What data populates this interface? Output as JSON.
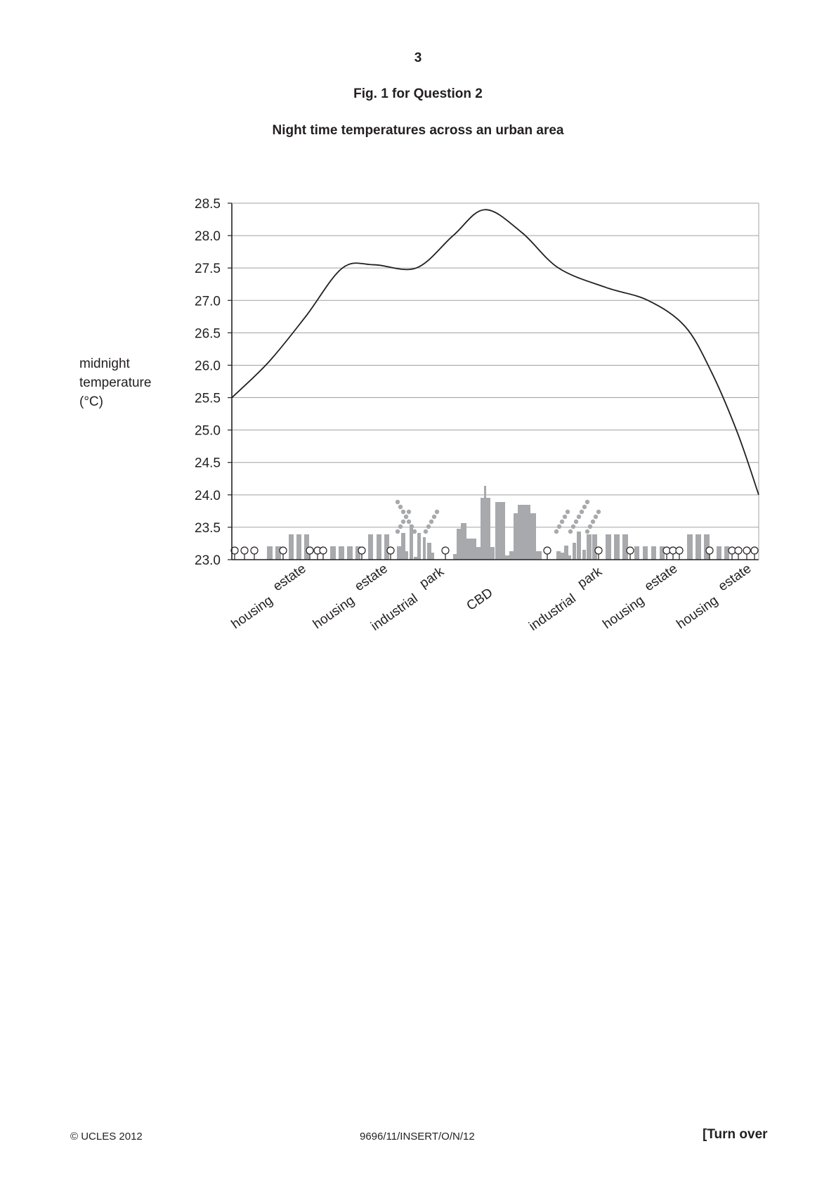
{
  "page": {
    "number": "3",
    "figure_caption": "Fig. 1 for Question 2",
    "footer_left": "© UCLES 2012",
    "footer_center": "9696/11/INSERT/O/N/12",
    "footer_right": "[Turn over"
  },
  "chart_data": {
    "type": "line",
    "title": "Night time temperatures across an urban area",
    "ylabel_lines": [
      "midnight",
      "temperature",
      "(°C)"
    ],
    "xlabel": "",
    "ylim": [
      23.0,
      28.5
    ],
    "y_ticks": [
      "23.0",
      "23.5",
      "24.0",
      "24.5",
      "25.0",
      "25.5",
      "26.0",
      "26.5",
      "27.0",
      "27.5",
      "28.0",
      "28.5"
    ],
    "grid": true,
    "x_range": [
      0,
      100
    ],
    "zones": [
      {
        "line1": "housing",
        "line2": "estate",
        "x": 7
      },
      {
        "line1": "housing",
        "line2": "estate",
        "x": 22.5
      },
      {
        "line1": "industrial",
        "line2": "park",
        "x": 34
      },
      {
        "line1": "CBD",
        "line2": "",
        "x": 49
      },
      {
        "line1": "industrial",
        "line2": "park",
        "x": 64
      },
      {
        "line1": "housing",
        "line2": "estate",
        "x": 77.5
      },
      {
        "line1": "housing",
        "line2": "estate",
        "x": 91.5
      }
    ],
    "series": [
      {
        "x": [
          0,
          7,
          14,
          21,
          27,
          35,
          42,
          48,
          55,
          62,
          71,
          79,
          86,
          91,
          96,
          100
        ],
        "y": [
          25.5,
          26.05,
          26.75,
          27.5,
          27.55,
          27.5,
          28.0,
          28.4,
          28.05,
          27.5,
          27.2,
          27.0,
          26.6,
          25.9,
          24.95,
          24.0
        ]
      }
    ],
    "colors": {
      "line": "#231f20",
      "grid": "#a0a0a0",
      "axis": "#231f20",
      "buildings": "#a7a9ac"
    }
  }
}
